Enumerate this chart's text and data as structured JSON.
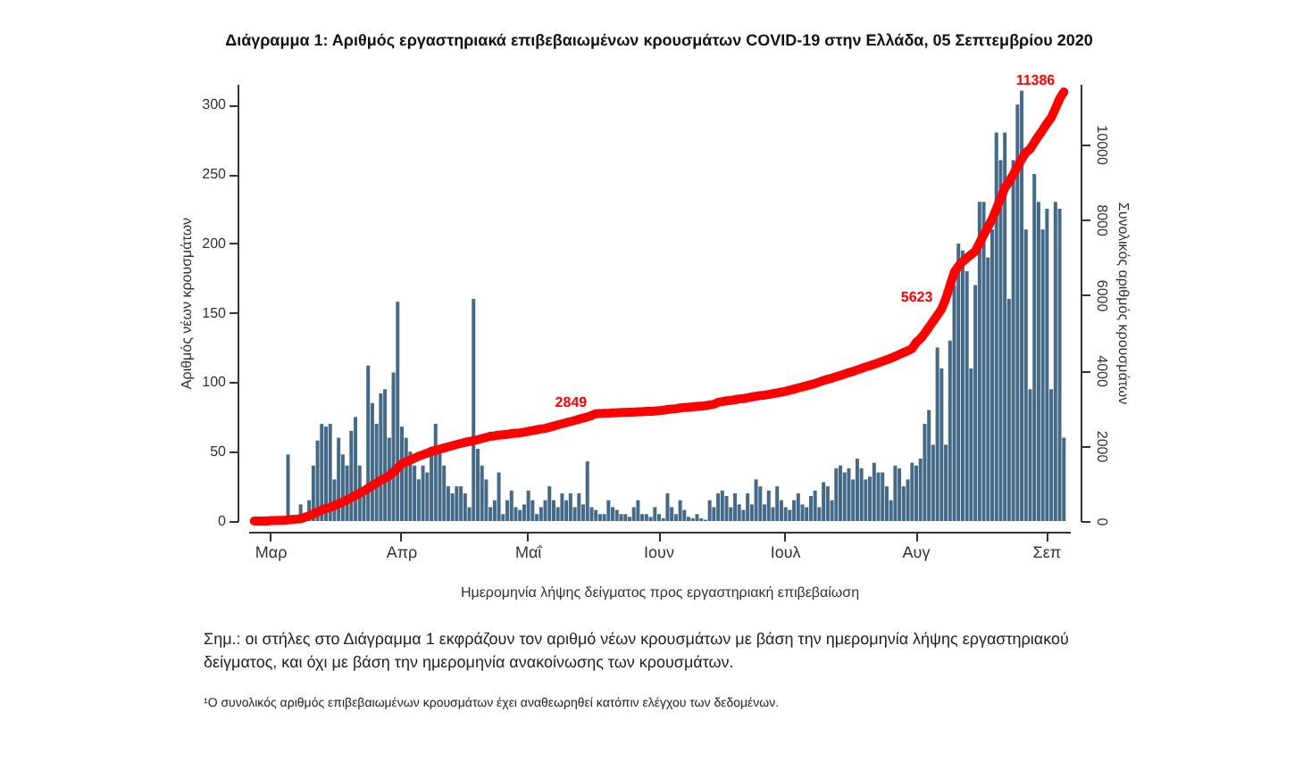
{
  "chart_data": {
    "type": "bar",
    "title": "Διάγραμμα 1: Αριθμός εργαστηριακά επιβεβαιωμένων κρουσμάτων COVID-19 στην Ελλάδα, 05 Σεπτεμβρίου 2020",
    "xlabel": "Ημερομηνία λήψης δείγματος προς εργαστηριακή επιβεβαίωση",
    "ylabel": "Αριθμός νέων κρουσμάτων",
    "y2label": "Συνολικός αριθμός κρουσμάτων",
    "categories": [
      null,
      null,
      null,
      null,
      "Μαρ",
      null,
      null,
      null,
      null,
      null,
      null,
      null,
      null,
      null,
      null,
      null,
      null,
      null,
      null,
      null,
      null,
      null,
      null,
      null,
      null,
      null,
      null,
      null,
      null,
      null,
      null,
      null,
      null,
      null,
      null,
      "Απρ",
      null,
      null,
      null,
      null,
      null,
      null,
      null,
      null,
      null,
      null,
      null,
      null,
      null,
      null,
      null,
      null,
      null,
      null,
      null,
      null,
      null,
      null,
      null,
      null,
      null,
      null,
      null,
      null,
      null,
      "Μαΐ",
      null,
      null,
      null,
      null,
      null,
      null,
      null,
      null,
      null,
      null,
      null,
      null,
      null,
      null,
      null,
      null,
      null,
      null,
      null,
      null,
      null,
      null,
      null,
      null,
      null,
      null,
      null,
      null,
      null,
      null,
      "Ιουν",
      null,
      null,
      null,
      null,
      null,
      null,
      null,
      null,
      null,
      null,
      null,
      null,
      null,
      null,
      null,
      null,
      null,
      null,
      null,
      null,
      null,
      null,
      null,
      null,
      null,
      null,
      null,
      null,
      null,
      "Ιουλ",
      null,
      null,
      null,
      null,
      null,
      null,
      null,
      null,
      null,
      null,
      null,
      null,
      null,
      null,
      null,
      null,
      null,
      null,
      null,
      null,
      null,
      null,
      null,
      null,
      null,
      null,
      null,
      null,
      null,
      null,
      "Αυγ",
      null,
      null,
      null,
      null,
      null,
      null,
      null,
      null,
      null,
      null,
      null,
      null,
      null,
      null,
      null,
      null,
      null,
      null,
      null,
      null,
      null,
      null,
      null,
      null,
      null,
      null,
      null,
      null,
      null,
      null,
      "Σεπ",
      null,
      null,
      null,
      null
    ],
    "series": [
      {
        "color": "#456a87",
        "values": [
          null,
          null,
          null,
          null,
          null,
          0,
          null,
          null,
          48,
          null,
          null,
          12,
          null,
          15,
          40,
          58,
          70,
          68,
          70,
          30,
          60,
          48,
          40,
          65,
          75,
          40,
          20,
          112,
          85,
          70,
          92,
          95,
          60,
          107,
          158,
          68,
          60,
          50,
          40,
          30,
          40,
          35,
          50,
          70,
          50,
          40,
          25,
          20,
          25,
          25,
          20,
          10,
          160,
          52,
          40,
          30,
          10,
          15,
          35,
          5,
          15,
          22,
          10,
          8,
          12,
          22,
          15,
          5,
          10,
          15,
          25,
          15,
          10,
          20,
          15,
          20,
          10,
          20,
          12,
          43,
          10,
          8,
          5,
          5,
          15,
          10,
          8,
          5,
          5,
          3,
          10,
          15,
          5,
          5,
          3,
          10,
          5,
          2,
          20,
          10,
          5,
          15,
          8,
          3,
          2,
          5,
          2,
          1,
          15,
          10,
          20,
          22,
          18,
          10,
          20,
          12,
          8,
          20,
          12,
          30,
          25,
          12,
          22,
          10,
          25,
          15,
          10,
          8,
          15,
          20,
          12,
          10,
          18,
          22,
          10,
          28,
          25,
          15,
          38,
          40,
          35,
          38,
          30,
          45,
          38,
          30,
          32,
          42,
          35,
          35,
          25,
          15,
          40,
          38,
          25,
          30,
          42,
          40,
          45,
          70,
          80,
          55,
          125,
          110,
          55,
          130,
          170,
          200,
          195,
          180,
          110,
          170,
          230,
          230,
          190,
          210,
          280,
          260,
          280,
          160,
          260,
          300,
          310,
          210,
          95,
          250,
          230,
          210,
          225,
          95,
          230,
          225,
          60
        ]
      },
      {
        "type": "line",
        "axis": "y2",
        "color": "#ff0000",
        "values": [
          0,
          0,
          0,
          0,
          10,
          10,
          20,
          20,
          30,
          40,
          50,
          60,
          100,
          140,
          190,
          240,
          290,
          330,
          360,
          410,
          460,
          510,
          560,
          620,
          680,
          740,
          800,
          870,
          940,
          1010,
          1080,
          1140,
          1200,
          1300,
          1410,
          1520,
          1570,
          1620,
          1670,
          1720,
          1760,
          1800,
          1850,
          1880,
          1910,
          1940,
          1970,
          2000,
          2030,
          2060,
          2090,
          2110,
          2130,
          2160,
          2190,
          2220,
          2250,
          2260,
          2280,
          2290,
          2300,
          2320,
          2330,
          2340,
          2360,
          2380,
          2400,
          2420,
          2440,
          2460,
          2490,
          2520,
          2550,
          2580,
          2610,
          2640,
          2670,
          2700,
          2730,
          2760,
          2800,
          2849,
          2850,
          2860,
          2860,
          2870,
          2870,
          2880,
          2880,
          2890,
          2890,
          2900,
          2900,
          2910,
          2910,
          2920,
          2930,
          2940,
          2960,
          2970,
          2980,
          3000,
          3010,
          3020,
          3030,
          3040,
          3050,
          3060,
          3080,
          3100,
          3150,
          3170,
          3190,
          3200,
          3220,
          3240,
          3250,
          3270,
          3290,
          3310,
          3330,
          3340,
          3360,
          3380,
          3400,
          3420,
          3440,
          3470,
          3500,
          3530,
          3560,
          3590,
          3620,
          3650,
          3690,
          3730,
          3760,
          3790,
          3830,
          3860,
          3900,
          3940,
          3970,
          4010,
          4050,
          4090,
          4120,
          4160,
          4200,
          4240,
          4280,
          4320,
          4370,
          4420,
          4470,
          4520,
          4580,
          4740,
          4840,
          4980,
          5140,
          5300,
          5460,
          5623,
          5900,
          6250,
          6600,
          6760,
          6880,
          6980,
          7070,
          7160,
          7380,
          7600,
          7800,
          8010,
          8290,
          8560,
          8840,
          9000,
          9200,
          9400,
          9600,
          9780,
          9870,
          10050,
          10220,
          10380,
          10550,
          10700,
          10950,
          11200,
          11386
        ],
        "value_labels": [
          null,
          null,
          null,
          null,
          null,
          null,
          null,
          null,
          null,
          null,
          null,
          null,
          null,
          null,
          null,
          null,
          null,
          null,
          null,
          null,
          null,
          null,
          null,
          null,
          null,
          null,
          null,
          null,
          null,
          null,
          null,
          null,
          null,
          null,
          null,
          null,
          null,
          null,
          null,
          null,
          null,
          null,
          null,
          null,
          null,
          null,
          null,
          null,
          null,
          null,
          null,
          null,
          null,
          null,
          null,
          null,
          null,
          null,
          null,
          null,
          null,
          null,
          null,
          null,
          null,
          null,
          null,
          null,
          null,
          null,
          null,
          null,
          null,
          null,
          null,
          null,
          null,
          null,
          null,
          null,
          null,
          "2849",
          null,
          null,
          null,
          null,
          null,
          null,
          null,
          null,
          null,
          null,
          null,
          null,
          null,
          null,
          null,
          null,
          null,
          null,
          null,
          null,
          null,
          null,
          null,
          null,
          null,
          null,
          null,
          null,
          null,
          null,
          null,
          null,
          null,
          null,
          null,
          null,
          null,
          null,
          null,
          null,
          null,
          null,
          null,
          null,
          null,
          null,
          null,
          null,
          null,
          null,
          null,
          null,
          null,
          null,
          null,
          null,
          null,
          null,
          null,
          null,
          null,
          null,
          null,
          null,
          null,
          null,
          null,
          null,
          null,
          null,
          null,
          null,
          null,
          null,
          null,
          null,
          null,
          null,
          null,
          null,
          null,
          "5623",
          null,
          null,
          null,
          null,
          null,
          null,
          null,
          null,
          null,
          null,
          null,
          null,
          null,
          null,
          null,
          null,
          null,
          null,
          null,
          null,
          null,
          null,
          null,
          null,
          null,
          null,
          null,
          null,
          "11386"
        ]
      }
    ],
    "ylim": [
      0,
      315
    ],
    "yticks": [
      0,
      50,
      100,
      150,
      200,
      250,
      300
    ],
    "y2lim": [
      0,
      11600
    ],
    "y2ticks": [
      0,
      2000,
      4000,
      6000,
      8000,
      10000
    ],
    "grid": false,
    "annotations": [
      "Σημ.: οι στήλες στο Διάγραμμα 1 εκφράζουν τον αριθμό νέων κρουσμάτων με βάση την ημερομηνία λήψης εργαστηριακού δείγματος, και όχι με βάση την ημερομηνία ανακοίνωσης των κρουσμάτων.",
      "¹Ο συνολικός αριθμός επιβεβαιωμένων κρουσμάτων έχει αναθεωρηθεί κατόπιν ελέγχου των δεδομένων."
    ]
  }
}
